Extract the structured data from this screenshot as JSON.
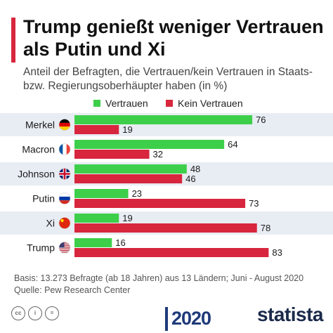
{
  "title": "Trump genießt weniger Vertrauen als Putin und Xi",
  "subtitle": "Anteil der Befragten, die Vertrauen/kein Vertrauen in Staats- bzw. Regierungsoberhäupter haben (in %)",
  "colors": {
    "accent": "#d7263d",
    "trust": "#3ecf4a",
    "no_trust": "#d7263d",
    "band": "#e8ecf3",
    "brand": "#1b2a4a"
  },
  "chart_data": {
    "type": "bar",
    "orientation": "horizontal",
    "categories": [
      "Merkel",
      "Macron",
      "Johnson",
      "Putin",
      "Xi",
      "Trump"
    ],
    "flags": [
      "germany-flag-icon",
      "france-flag-icon",
      "uk-flag-icon",
      "russia-flag-icon",
      "china-flag-icon",
      "usa-flag-icon"
    ],
    "series": [
      {
        "name": "Vertrauen",
        "values": [
          76,
          64,
          48,
          23,
          19,
          16
        ]
      },
      {
        "name": "Kein Vertrauen",
        "values": [
          19,
          32,
          46,
          73,
          78,
          83
        ]
      }
    ],
    "xlim": [
      0,
      100
    ],
    "legend_position": "top",
    "grid": false
  },
  "footer": {
    "basis": "Basis: 13.273 Befragte (ab 18 Jahren) aus 13 Ländern; Juni - August 2020",
    "source": "Quelle: Pew Research Center"
  },
  "badges": {
    "year": "2020",
    "brand": "statista"
  },
  "license_icons": [
    "cc",
    "i",
    "="
  ]
}
